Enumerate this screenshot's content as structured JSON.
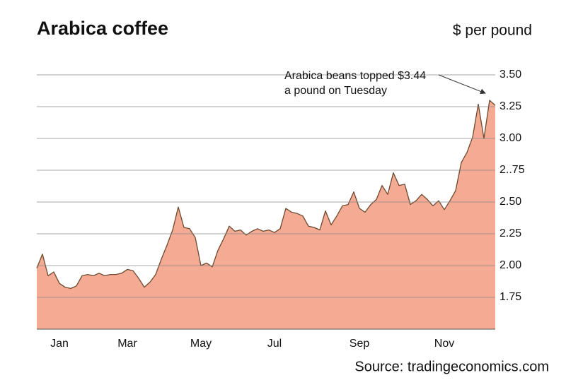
{
  "chart_data": {
    "type": "area",
    "title": "Arabica coffee",
    "y_label": "$ per pound",
    "source": "Source: tradingeconomics.com",
    "annotation": [
      "Arabica beans topped $3.44",
      "a pound on Tuesday"
    ],
    "color": "#f5ab93",
    "line_color": "#6b4a30",
    "grid": true,
    "ylim": [
      1.5,
      3.5
    ],
    "yticks": [
      {
        "value": 1.75,
        "label": "1.75"
      },
      {
        "value": 2,
        "label": "2.00"
      },
      2.25,
      {
        "value": 2.5,
        "label": "2.50"
      },
      {
        "value": 2.75,
        "label": "2..75"
      },
      {
        "value": 3,
        "label": "3.00"
      },
      3.25,
      {
        "value": 3.5,
        "label": "3.50"
      }
    ],
    "categories": [
      null,
      null,
      null,
      null,
      "Jan",
      null,
      null,
      null,
      null,
      null,
      null,
      null,
      null,
      null,
      null,
      null,
      "Mar",
      null,
      null,
      null,
      null,
      null,
      null,
      null,
      null,
      null,
      null,
      null,
      null,
      "May",
      null,
      null,
      null,
      null,
      null,
      null,
      null,
      null,
      null,
      null,
      null,
      null,
      "Jul",
      null,
      null,
      null,
      null,
      null,
      null,
      null,
      null,
      null,
      null,
      null,
      null,
      null,
      null,
      "Sep",
      null,
      null,
      null,
      null,
      null,
      null,
      null,
      null,
      null,
      null,
      null,
      null,
      null,
      null,
      "Nov",
      null,
      null,
      null,
      null,
      null,
      null,
      null,
      null,
      null
    ],
    "values": [
      1.98,
      2.09,
      1.92,
      1.95,
      1.86,
      1.83,
      1.82,
      1.84,
      1.92,
      1.93,
      1.92,
      1.94,
      1.92,
      1.93,
      1.93,
      1.94,
      1.97,
      1.96,
      1.9,
      1.83,
      1.87,
      1.93,
      2.05,
      2.16,
      2.28,
      2.46,
      2.3,
      2.29,
      2.22,
      2.0,
      2.02,
      1.99,
      2.12,
      2.21,
      2.31,
      2.27,
      2.28,
      2.24,
      2.27,
      2.29,
      2.27,
      2.28,
      2.26,
      2.29,
      2.45,
      2.42,
      2.41,
      2.39,
      2.31,
      2.3,
      2.28,
      2.43,
      2.32,
      2.39,
      2.47,
      2.48,
      2.58,
      2.45,
      2.42,
      2.48,
      2.52,
      2.63,
      2.56,
      2.73,
      2.63,
      2.64,
      2.48,
      2.51,
      2.56,
      2.52,
      2.47,
      2.51,
      2.44,
      2.51,
      2.59,
      2.81,
      2.89,
      3.01,
      3.27,
      3.0,
      3.3,
      3.26
    ]
  }
}
